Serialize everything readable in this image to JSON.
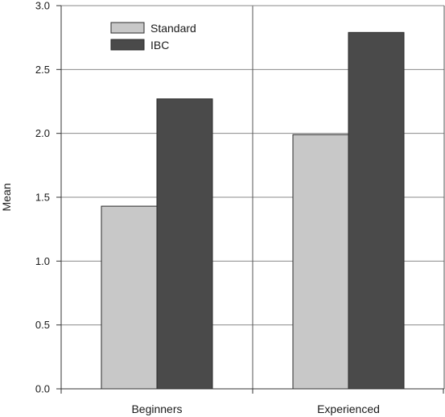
{
  "chart_data": {
    "type": "bar",
    "title": "",
    "xlabel": "",
    "ylabel": "Mean",
    "categories": [
      "Beginners",
      "Experienced"
    ],
    "series": [
      {
        "name": "Standard",
        "values": [
          1.43,
          1.99
        ],
        "color": "#c8c8c8"
      },
      {
        "name": "IBC",
        "values": [
          2.27,
          2.79
        ],
        "color": "#4a4a4a"
      }
    ],
    "ylim": [
      0,
      3.0
    ],
    "yticks": [
      "0.0",
      "0.5",
      "1.0",
      "1.5",
      "2.0",
      "2.5",
      "3.0"
    ],
    "grid": true,
    "legend_position": "top-left"
  }
}
